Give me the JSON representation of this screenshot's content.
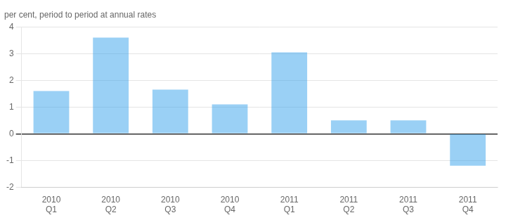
{
  "chart_data": {
    "type": "bar",
    "title": "per cent, period to period at annual rates",
    "categories": [
      "2010\nQ1",
      "2010\nQ2",
      "2010\nQ3",
      "2010\nQ4",
      "2011\nQ1",
      "2011\nQ2",
      "2011\nQ3",
      "2011\nQ4"
    ],
    "values": [
      1.6,
      3.6,
      1.65,
      1.1,
      3.05,
      0.5,
      0.5,
      -1.2
    ],
    "ylim": [
      -2,
      4
    ],
    "yticks": [
      -2,
      -1,
      0,
      1,
      2,
      3,
      4
    ],
    "grid": true
  }
}
